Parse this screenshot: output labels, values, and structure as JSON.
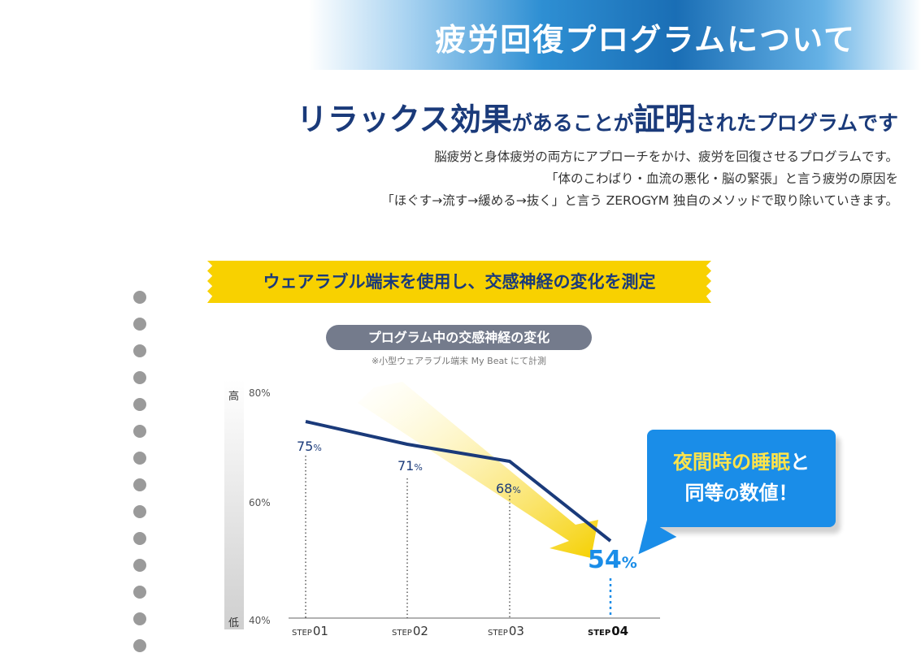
{
  "banner": {
    "title": "疲労回復プログラムについて"
  },
  "headline": {
    "part1": "リラックス効果",
    "part2": "があることが",
    "part3": "証明",
    "part4": "されたプログラムです"
  },
  "description": {
    "line1": "脳疲労と身体疲労の両方にアプローチをかけ、疲労を回復させるプログラムです。",
    "line2": "「体のこわばり・血流の悪化・脳の緊張」と言う疲労の原因を",
    "line3": "「ほぐす→流す→緩める→抜く」と言う ZEROGYM 独自のメソッドで取り除いていきます。"
  },
  "ribbon": {
    "text": "ウェアラブル端末を使用し、交感神経の変化を測定"
  },
  "chart_header": {
    "title": "プログラム中の交感神経の変化",
    "note": "※小型ウェアラブル端末 My Beat にて計測"
  },
  "axis": {
    "high": "高",
    "low": "低",
    "ticks": [
      "80%",
      "60%",
      "40%"
    ]
  },
  "callout": {
    "l1a": "夜間時の",
    "l1b": "睡眠",
    "l1c": "と",
    "l2a": "同等",
    "l2b": "の",
    "l2c": "数値！"
  },
  "colors": {
    "line": "#1a3a7a",
    "accent": "#1a8de8",
    "ribbon": "#f8d100",
    "arrow": "#f5d000"
  },
  "chart_data": {
    "type": "line",
    "categories": [
      "STEP01",
      "STEP02",
      "STEP03",
      "STEP04"
    ],
    "category_prefix": [
      "STEP",
      "STEP",
      "STEP",
      "STEP"
    ],
    "category_num": [
      "01",
      "02",
      "03",
      "04"
    ],
    "values": [
      75,
      71,
      68,
      54
    ],
    "value_labels": [
      "75",
      "71",
      "68",
      "54"
    ],
    "unit": "%",
    "ylim": [
      40,
      80
    ],
    "grid": false
  }
}
